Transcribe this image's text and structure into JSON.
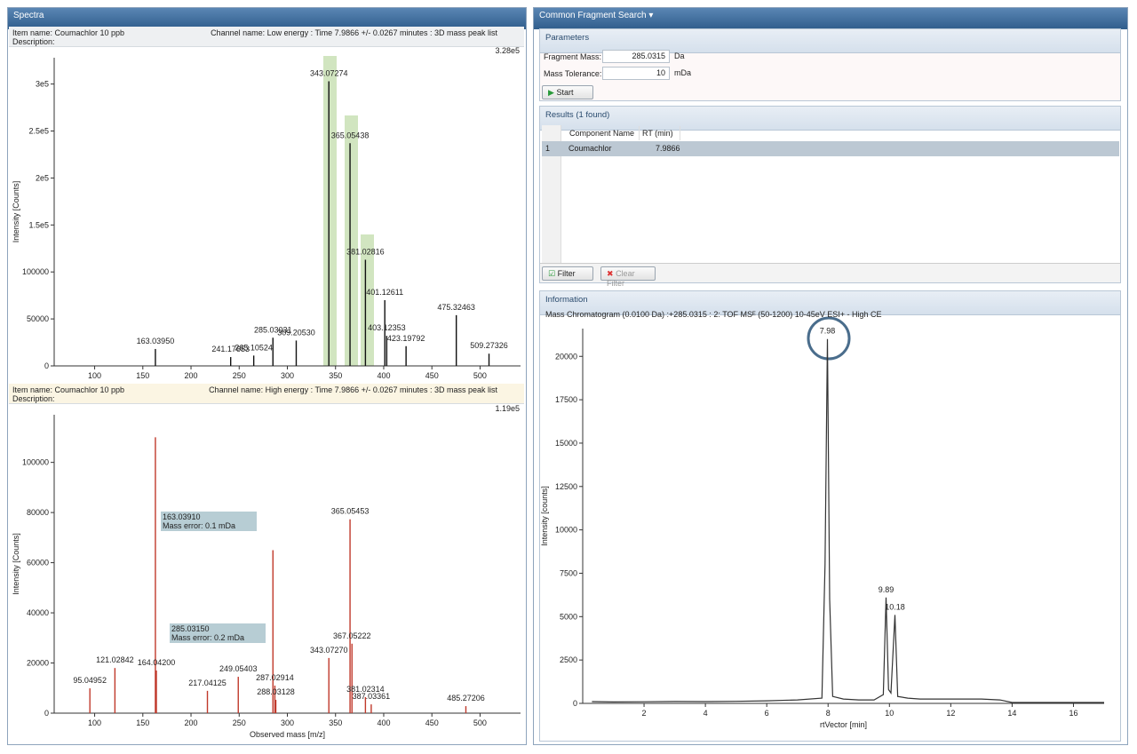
{
  "spectra": {
    "title": "Spectra",
    "low": {
      "item": "Item name: Coumachlor 10 ppb",
      "channel": "Channel name: Low energy : Time 7.9866 +/- 0.0267 minutes : 3D mass peak list",
      "description": "Description:"
    },
    "high": {
      "item": "Item name: Coumachlor 10 ppb",
      "channel": "Channel name: High energy : Time 7.9866 +/- 0.0267 minutes : 3D mass peak list",
      "description": "Description:"
    }
  },
  "search": {
    "title": "Common Fragment Search",
    "parameters": {
      "title": "Parameters",
      "fragment_label": "Fragment Mass:",
      "fragment_value": "285.0315",
      "fragment_unit": "Da",
      "tolerance_label": "Mass Tolerance:",
      "tolerance_value": "10",
      "tolerance_unit": "mDa",
      "start": "Start"
    },
    "results": {
      "title": "Results (1 found)",
      "headers": [
        "Component Name",
        "RT (min)"
      ],
      "rows": [
        [
          "1",
          "Coumachlor",
          "7.9866"
        ]
      ],
      "filter": "Filter",
      "clear_filter": "Clear Filter"
    },
    "information": {
      "title": "Information"
    }
  },
  "chart_data": [
    {
      "type": "bar",
      "max_label": "3.28e5",
      "y_label": "Intensity [Counts]",
      "color": "#111111",
      "x": [
        163.0395,
        241.17653,
        265.10524,
        285.03031,
        309.2053,
        343.07274,
        365.05438,
        381.02816,
        401.12611,
        403.12353,
        423.19792,
        475.32463,
        509.27326
      ],
      "x_labels": [
        "163.03950",
        "241.17653",
        "265.10524",
        "285.03031",
        "309.20530",
        "343.07274",
        "365.05438",
        "381.02816",
        "401.12611",
        "403.12353",
        "423.19792",
        "475.32463",
        "509.27326"
      ],
      "values": [
        18000,
        9400,
        11000,
        30000,
        27000,
        303000,
        237000,
        113000,
        70000,
        32000,
        21000,
        54000,
        13000
      ],
      "xlim": [
        58,
        542
      ],
      "ylim": [
        0,
        328000
      ],
      "xticks": [
        100,
        150,
        200,
        250,
        300,
        350,
        400,
        450,
        500
      ],
      "yticks": [
        0,
        50000,
        100000,
        {
          "value": 150000,
          "label": "1.5e5"
        },
        {
          "value": 200000,
          "label": "2e5"
        },
        {
          "value": 250000,
          "label": "2.5e5"
        },
        {
          "value": 300000,
          "label": "3e5"
        }
      ]
    },
    {
      "type": "bar",
      "max_label": "1.19e5",
      "x_label": "Observed mass [m/z]",
      "y_label": "Intensity [Counts]",
      "color": "#c0392b",
      "x": [
        95.04952,
        121.02842,
        163.0391,
        164.042,
        217.04125,
        249.05403,
        285.0315,
        287.02914,
        288.03128,
        343.0727,
        365.05453,
        367.05222,
        381.02314,
        387.03361,
        485.27206
      ],
      "x_labels": [
        "95.04952",
        "121.02842",
        null,
        "164.04200",
        "217.04125",
        "249.05403",
        null,
        "287.02914",
        "288.03128",
        "343.07270",
        "365.05453",
        "367.05222",
        "381.02314",
        "387.03361",
        "485.27206"
      ],
      "values": [
        9900,
        18000,
        110000,
        17000,
        8900,
        14500,
        65000,
        11000,
        5300,
        22000,
        77300,
        27700,
        6400,
        3500,
        2800
      ],
      "annotations": [
        {
          "peak": "163.03910",
          "note": "Mass error: 0.1 mDa"
        },
        {
          "peak": "285.03150",
          "note": "Mass error: 0.2 mDa"
        }
      ],
      "xlim": [
        58,
        542
      ],
      "ylim": [
        0,
        119000
      ],
      "xticks": [
        100,
        150,
        200,
        250,
        300,
        350,
        400,
        450,
        500
      ],
      "yticks": [
        0,
        20000,
        40000,
        60000,
        80000,
        100000
      ]
    },
    {
      "type": "line",
      "title": "Mass Chromatogram (0.0100 Da) :+285.0315 : 2: TOF MSᴱ (50-1200) 10-45eV ESI+ - High CE",
      "x_label": "rtVector [min]",
      "y_label": "Intensity [counts]",
      "color": "#333333",
      "x": [
        0.3,
        1,
        2,
        3,
        4,
        5,
        6,
        7,
        7.8,
        7.9,
        7.98,
        8.05,
        8.15,
        8.5,
        9,
        9.5,
        9.8,
        9.89,
        9.97,
        10.05,
        10.18,
        10.27,
        10.6,
        11,
        12,
        13,
        13.6,
        14,
        15,
        16,
        17
      ],
      "values": [
        100,
        80,
        90,
        110,
        100,
        120,
        150,
        200,
        300,
        8000,
        21000,
        6000,
        400,
        250,
        200,
        200,
        500,
        6100,
        800,
        600,
        5100,
        400,
        300,
        250,
        250,
        250,
        200,
        50,
        50,
        50,
        50
      ],
      "peaks": [
        7.98,
        9.89,
        10.18
      ],
      "xlim": [
        0,
        17
      ],
      "ylim": [
        0,
        21600
      ],
      "xticks": [
        2,
        4,
        6,
        8,
        10,
        12,
        14,
        16
      ],
      "yticks": [
        0,
        2500,
        5000,
        7500,
        10000,
        12500,
        15000,
        17500,
        20000
      ]
    }
  ]
}
